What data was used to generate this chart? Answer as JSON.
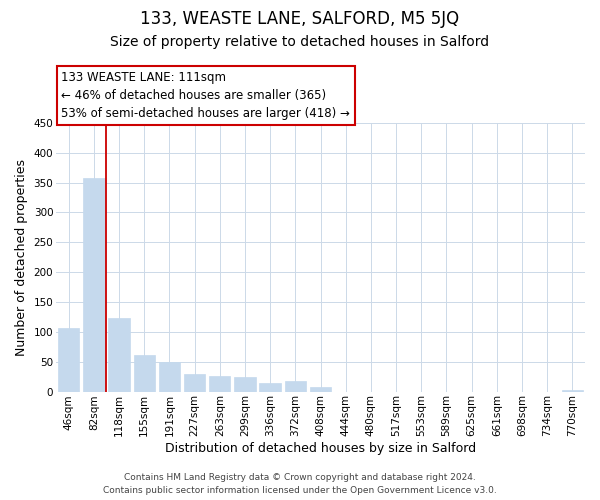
{
  "title": "133, WEASTE LANE, SALFORD, M5 5JQ",
  "subtitle": "Size of property relative to detached houses in Salford",
  "xlabel": "Distribution of detached houses by size in Salford",
  "ylabel": "Number of detached properties",
  "bar_labels": [
    "46sqm",
    "82sqm",
    "118sqm",
    "155sqm",
    "191sqm",
    "227sqm",
    "263sqm",
    "299sqm",
    "336sqm",
    "372sqm",
    "408sqm",
    "444sqm",
    "480sqm",
    "517sqm",
    "553sqm",
    "589sqm",
    "625sqm",
    "661sqm",
    "698sqm",
    "734sqm",
    "770sqm"
  ],
  "bar_values": [
    107,
    357,
    123,
    62,
    49,
    30,
    26,
    25,
    14,
    18,
    8,
    0,
    0,
    0,
    0,
    0,
    0,
    0,
    0,
    0,
    2
  ],
  "bar_color": "#c5d9ed",
  "bar_edge_color": "#c5d9ed",
  "marker_line_color": "#cc0000",
  "ylim": [
    0,
    450
  ],
  "yticks": [
    0,
    50,
    100,
    150,
    200,
    250,
    300,
    350,
    400,
    450
  ],
  "annotation_title": "133 WEASTE LANE: 111sqm",
  "annotation_line1": "← 46% of detached houses are smaller (365)",
  "annotation_line2": "53% of semi-detached houses are larger (418) →",
  "annotation_box_color": "#ffffff",
  "annotation_box_edge": "#cc0000",
  "footer_line1": "Contains HM Land Registry data © Crown copyright and database right 2024.",
  "footer_line2": "Contains public sector information licensed under the Open Government Licence v3.0.",
  "background_color": "#ffffff",
  "grid_color": "#ccd9e8",
  "title_fontsize": 12,
  "subtitle_fontsize": 10,
  "ylabel_fontsize": 9,
  "xlabel_fontsize": 9,
  "tick_fontsize": 7.5,
  "footer_fontsize": 6.5,
  "ann_fontsize": 8.5
}
